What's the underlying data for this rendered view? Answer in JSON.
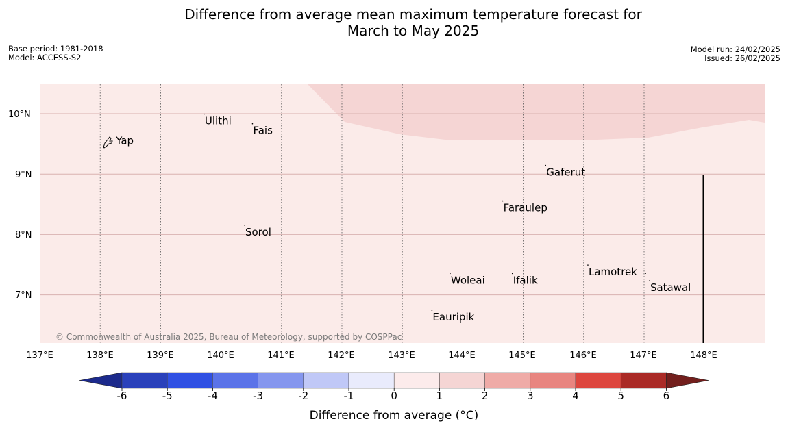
{
  "title": {
    "line1": "Difference from average mean maximum temperature forecast for",
    "line2": "March to May 2025"
  },
  "meta_left": {
    "base_period": "Base period: 1981-2018",
    "model": "Model: ACCESS-S2"
  },
  "meta_right": {
    "model_run": "Model run: 24/02/2025",
    "issued": "Issued: 26/02/2025"
  },
  "map": {
    "lat_labels": [
      "10°N",
      "9°N",
      "8°N",
      "7°N"
    ],
    "lon_labels": [
      "137°E",
      "138°E",
      "139°E",
      "140°E",
      "141°E",
      "142°E",
      "143°E",
      "144°E",
      "145°E",
      "146°E",
      "147°E",
      "148°E"
    ],
    "places": [
      {
        "name": "Yap",
        "lon": 138.25,
        "lat": 9.55
      },
      {
        "name": "Ulithi",
        "lon": 139.72,
        "lat": 9.88
      },
      {
        "name": "Fais",
        "lon": 140.52,
        "lat": 9.72
      },
      {
        "name": "Gaferut",
        "lon": 145.37,
        "lat": 9.03
      },
      {
        "name": "Faraulep",
        "lon": 144.66,
        "lat": 8.44
      },
      {
        "name": "Sorol",
        "lon": 140.39,
        "lat": 8.04
      },
      {
        "name": "Lamotrek",
        "lon": 146.07,
        "lat": 7.38
      },
      {
        "name": "Woleai",
        "lon": 143.79,
        "lat": 7.24
      },
      {
        "name": "Ifalik",
        "lon": 144.82,
        "lat": 7.24
      },
      {
        "name": "Satawal",
        "lon": 147.09,
        "lat": 7.12
      },
      {
        "name": "Eauripik",
        "lon": 143.49,
        "lat": 6.63
      }
    ],
    "credit": "© Commonwealth of Australia 2025, Bureau of Meteorology, supported by COSPPac",
    "base_color": "#fbebe9",
    "anomaly_color": "#f5d5d4"
  },
  "colorbar": {
    "title": "Difference from average (°C)",
    "ticks": [
      "-6",
      "-5",
      "-4",
      "-3",
      "-2",
      "-1",
      "0",
      "1",
      "2",
      "3",
      "4",
      "5",
      "6"
    ],
    "colors": [
      "#1c2a8c",
      "#2a41bb",
      "#3050e3",
      "#5b73e8",
      "#8596ee",
      "#c0c8f7",
      "#e9ebfc",
      "#fcebeb",
      "#f5d5d4",
      "#efaba7",
      "#e88580",
      "#dd463e",
      "#aa2a26",
      "#731f1d"
    ]
  }
}
